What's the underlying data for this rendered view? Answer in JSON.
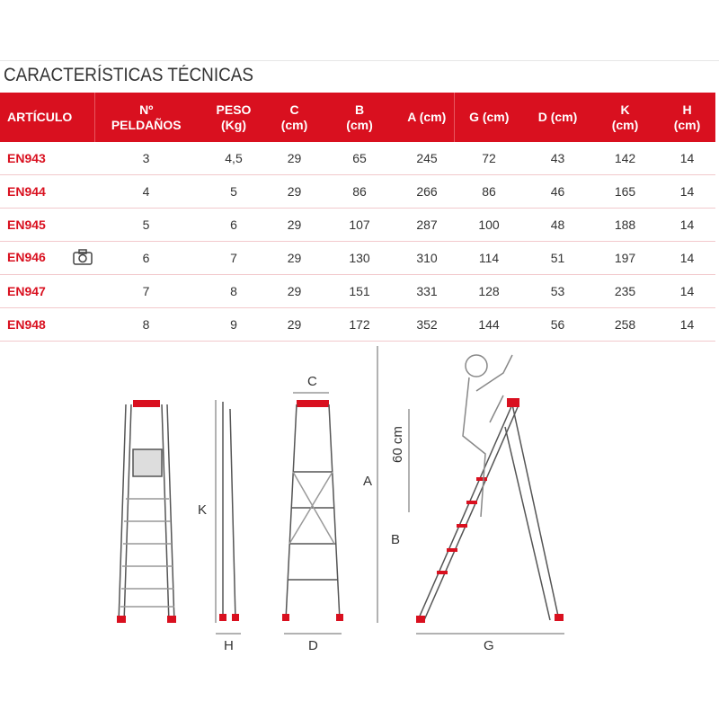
{
  "title": "CARACTERÍSTICAS TÉCNICAS",
  "table": {
    "headers": [
      "ARTÍCULO",
      "Nº\nPELDAÑOS",
      "PESO\n(Kg)",
      "C\n(cm)",
      "B\n(cm)",
      "A (cm)",
      "G (cm)",
      "D (cm)",
      "K\n(cm)",
      "H\n(cm)"
    ],
    "rows": [
      [
        "EN943",
        "3",
        "4,5",
        "29",
        "65",
        "245",
        "72",
        "43",
        "142",
        "14"
      ],
      [
        "EN944",
        "4",
        "5",
        "29",
        "86",
        "266",
        "86",
        "46",
        "165",
        "14"
      ],
      [
        "EN945",
        "5",
        "6",
        "29",
        "107",
        "287",
        "100",
        "48",
        "188",
        "14"
      ],
      [
        "EN946",
        "6",
        "7",
        "29",
        "130",
        "310",
        "114",
        "51",
        "197",
        "14"
      ],
      [
        "EN947",
        "7",
        "8",
        "29",
        "151",
        "331",
        "128",
        "53",
        "235",
        "14"
      ],
      [
        "EN948",
        "8",
        "9",
        "29",
        "172",
        "352",
        "144",
        "56",
        "258",
        "14"
      ]
    ],
    "camera_row": 3
  },
  "diagram": {
    "labels": {
      "C": "C",
      "K": "K",
      "H": "H",
      "D": "D",
      "A": "A",
      "B": "B",
      "G": "G",
      "h60": "60 cm"
    }
  },
  "colors": {
    "accent": "#d9101f"
  }
}
